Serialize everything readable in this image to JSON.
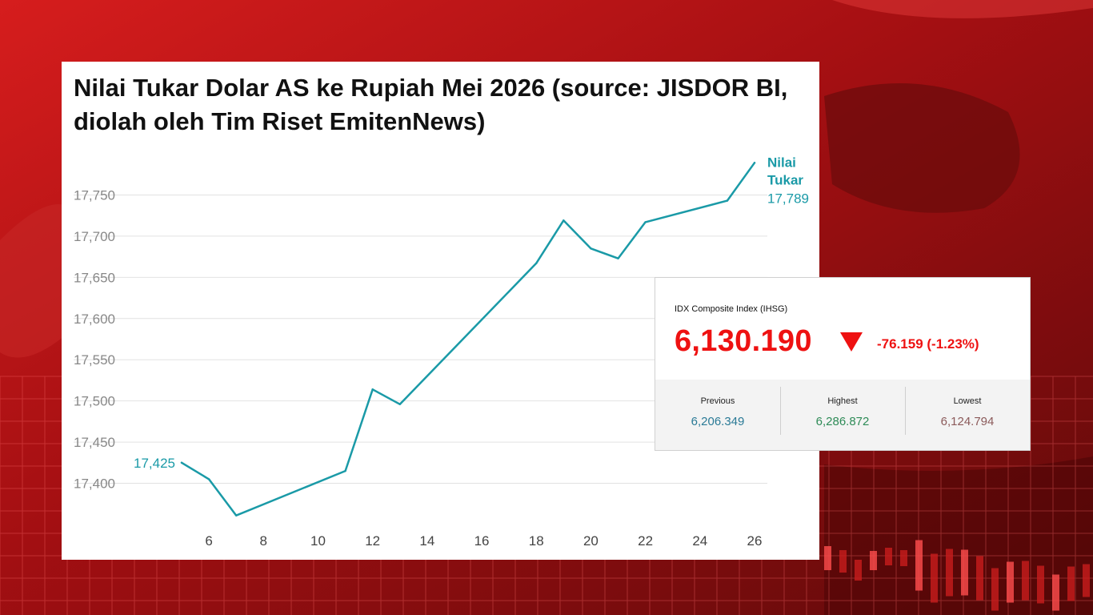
{
  "chart_data": {
    "type": "line",
    "title": "Nilai Tukar Dolar AS ke Rupiah Mei 2026 (source: JISDOR BI, diolah oleh Tim Riset EmitenNews)",
    "series": [
      {
        "name": "Nilai Tukar",
        "color": "#1a9aa7",
        "x": [
          5,
          6,
          7,
          11,
          12,
          13,
          18,
          19,
          20,
          21,
          22,
          25,
          26
        ],
        "y": [
          17425,
          17405,
          17361,
          17415,
          17514,
          17496,
          17667,
          17719,
          17685,
          17673,
          17717,
          17743,
          17789
        ]
      }
    ],
    "start_label": "17,425",
    "end_value_label": "17,789",
    "series_label_lines": [
      "Nilai",
      "Tukar"
    ],
    "x_ticks": [
      "6",
      "8",
      "10",
      "12",
      "14",
      "16",
      "18",
      "20",
      "22",
      "24",
      "26"
    ],
    "x_tick_values": [
      6,
      8,
      10,
      12,
      14,
      16,
      18,
      20,
      22,
      24,
      26
    ],
    "y_ticks": [
      "17,400",
      "17,450",
      "17,500",
      "17,550",
      "17,600",
      "17,650",
      "17,700",
      "17,750"
    ],
    "y_tick_values": [
      17400,
      17450,
      17500,
      17550,
      17600,
      17650,
      17700,
      17750
    ],
    "xlim": [
      5,
      26
    ],
    "ylim": [
      17350,
      17800
    ],
    "grid": true,
    "legend": "inline-right",
    "xlabel": "",
    "ylabel": ""
  },
  "idx_widget": {
    "title": "IDX Composite Index (IHSG)",
    "value": "6,130.190",
    "change": "-76.159 (-1.23%)",
    "direction_icon": "triangle-down-icon",
    "stats": [
      {
        "label": "Previous",
        "value": "6,206.349",
        "color": "#2a7a96"
      },
      {
        "label": "Highest",
        "value": "6,286.872",
        "color": "#2e8b57"
      },
      {
        "label": "Lowest",
        "value": "6,124.794",
        "color": "#8b5a5a"
      }
    ]
  },
  "colors": {
    "line": "#1a9aa7",
    "grid": "#e2e2e2",
    "tick_text": "#888888",
    "down": "#ee1111"
  }
}
